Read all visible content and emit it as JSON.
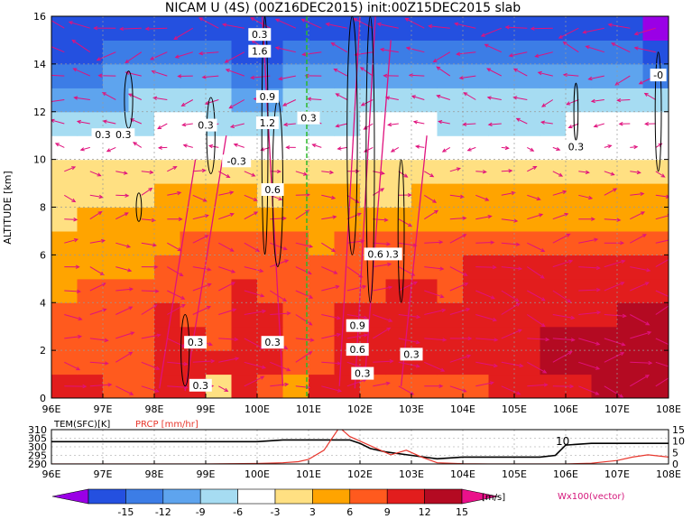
{
  "title": "NICAM U (4S) (00Z16DEC2015) init:00Z15DEC2015 slab",
  "chart_data": [
    {
      "type": "heatmap",
      "title": "NICAM U (4S) (00Z16DEC2015) init:00Z15DEC2015 slab",
      "ylabel": "ALTITUDE [km]",
      "xlim": [
        96,
        108
      ],
      "ylim": [
        0,
        16
      ],
      "x_ticks": [
        "96E",
        "97E",
        "98E",
        "99E",
        "100E",
        "101E",
        "102E",
        "103E",
        "104E",
        "105E",
        "106E",
        "107E",
        "108E"
      ],
      "y_ticks": [
        "0",
        "2",
        "4",
        "6",
        "8",
        "10",
        "12",
        "14",
        "16"
      ],
      "grid": true,
      "contour_labels": [
        "0.3",
        "1.6",
        "0.9",
        "1.2",
        "0.3",
        "0.3",
        "0.3",
        "0.3",
        "-0.3",
        "0.3",
        "0.6",
        "0.3",
        "0.3",
        "0.9",
        "0.6",
        "0.3",
        "0.6",
        "0.3",
        "0.3",
        "0.3",
        "-0"
      ],
      "wind_speed_bands": [
        {
          "z0": 0.0,
          "z1": 1.0,
          "u": [
            14,
            13,
            11,
            10,
            12,
            12,
            3,
            14,
            10,
            6,
            12,
            12,
            9,
            9,
            10,
            9,
            10,
            12,
            12,
            12,
            14,
            15,
            15,
            15
          ]
        },
        {
          "z0": 1.0,
          "z1": 2.0,
          "u": [
            9,
            10,
            11,
            11,
            12,
            13,
            12,
            14,
            14,
            11,
            11,
            12,
            12,
            13,
            14,
            13,
            14,
            14,
            14,
            15,
            16,
            16,
            16,
            16
          ]
        },
        {
          "z0": 2.0,
          "z1": 3.0,
          "u": [
            9,
            10,
            11,
            11,
            12,
            12,
            11,
            14,
            12,
            10,
            11,
            12,
            12,
            13,
            14,
            13,
            14,
            14,
            14,
            15,
            16,
            16,
            16,
            16
          ]
        },
        {
          "z0": 3.0,
          "z1": 4.0,
          "u": [
            10,
            9,
            10,
            10,
            12,
            11,
            10,
            13,
            12,
            11,
            11,
            12,
            12,
            13,
            13,
            12,
            13,
            13,
            13,
            14,
            14,
            14,
            15,
            15
          ]
        },
        {
          "z0": 4.0,
          "z1": 5.0,
          "u": [
            8,
            9,
            9,
            9,
            11,
            11,
            10,
            12,
            11,
            10,
            10,
            11,
            11,
            12,
            12,
            11,
            12,
            12,
            12,
            13,
            13,
            13,
            12,
            12
          ]
        },
        {
          "z0": 5.0,
          "z1": 6.0,
          "u": [
            7,
            8,
            8,
            8,
            10,
            10,
            9,
            11,
            11,
            9,
            9,
            10,
            10,
            10,
            11,
            11,
            12,
            12,
            12,
            12,
            13,
            13,
            12,
            12
          ]
        },
        {
          "z0": 6.0,
          "z1": 7.0,
          "u": [
            6,
            7,
            7,
            7,
            8,
            9,
            9,
            9,
            10,
            9,
            8,
            9,
            9,
            10,
            10,
            10,
            10,
            10,
            11,
            11,
            11,
            11,
            10,
            10
          ]
        },
        {
          "z0": 7.0,
          "z1": 8.0,
          "u": [
            5,
            6,
            6,
            6,
            7,
            8,
            8,
            7,
            8,
            8,
            7,
            7,
            7,
            7,
            8,
            8,
            8,
            8,
            8,
            8,
            8,
            8,
            8,
            8
          ]
        },
        {
          "z0": 8.0,
          "z1": 9.0,
          "u": [
            5,
            5,
            5,
            5,
            6,
            7,
            7,
            6,
            5,
            6,
            6,
            6,
            5,
            5,
            6,
            6,
            6,
            6,
            6,
            6,
            6,
            6,
            6,
            6
          ]
        },
        {
          "z0": 9.0,
          "z1": 10.0,
          "u": [
            4,
            4,
            4,
            4,
            3,
            5,
            5,
            4,
            3,
            4,
            4,
            4,
            4,
            3,
            3,
            3,
            3,
            3,
            3,
            3,
            3,
            3,
            3,
            3
          ]
        },
        {
          "z0": 10.0,
          "z1": 11.0,
          "u": [
            -2,
            -2,
            -2,
            -2,
            -1,
            -2,
            -2,
            -3,
            -2,
            -2,
            -2,
            -2,
            -2,
            -1,
            -1,
            -1,
            -1,
            0,
            0,
            0,
            0,
            0,
            0,
            0
          ]
        },
        {
          "z0": 11.0,
          "z1": 12.0,
          "u": [
            -6,
            -5,
            -5,
            -4,
            -3,
            -3,
            -4,
            -6,
            -5,
            -4,
            -4,
            -4,
            -3,
            -3,
            -3,
            -4,
            -5,
            -5,
            -4,
            -4,
            -3,
            -3,
            -3,
            -3
          ]
        },
        {
          "z0": 12.0,
          "z1": 13.0,
          "u": [
            -8,
            -8,
            -7,
            -6,
            -6,
            -5,
            -6,
            -9,
            -8,
            -6,
            -6,
            -5,
            -5,
            -5,
            -5,
            -6,
            -6,
            -6,
            -6,
            -5,
            -5,
            -5,
            -5,
            -5
          ]
        },
        {
          "z0": 13.0,
          "z1": 14.0,
          "u": [
            -11,
            -10,
            -9,
            -8,
            -8,
            -7,
            -8,
            -11,
            -11,
            -9,
            -8,
            -7,
            -7,
            -7,
            -7,
            -8,
            -8,
            -8,
            -7,
            -7,
            -7,
            -8,
            -9,
            -10
          ]
        },
        {
          "z0": 14.0,
          "z1": 15.0,
          "u": [
            -14,
            -13,
            -12,
            -11,
            -10,
            -10,
            -11,
            -14,
            -14,
            -12,
            -11,
            -10,
            -10,
            -10,
            -10,
            -11,
            -11,
            -10,
            -10,
            -10,
            -10,
            -11,
            -12,
            -13
          ]
        },
        {
          "z0": 15.0,
          "z1": 16.0,
          "u": [
            -15,
            -15,
            -14,
            -13,
            -13,
            -14,
            -14,
            -15,
            -15,
            -14,
            -14,
            -13,
            -13,
            -13,
            -13,
            -13,
            -13,
            -13,
            -13,
            -14,
            -14,
            -14,
            -15,
            -16
          ]
        }
      ],
      "vector_label": "Wx100(vector)"
    },
    {
      "type": "line",
      "xlim": [
        96,
        108
      ],
      "x_ticks": [
        "96E",
        "97E",
        "98E",
        "99E",
        "100E",
        "101E",
        "102E",
        "103E",
        "104E",
        "105E",
        "106E",
        "107E",
        "108E"
      ],
      "left_axis": {
        "label": "TEM(SFC)[K]",
        "ticks": [
          "290",
          "295",
          "300",
          "305",
          "310"
        ],
        "ylim": [
          290,
          310
        ]
      },
      "right_axis": {
        "label": "PRCP [mm/hr]",
        "ticks": [
          "0",
          "5",
          "10",
          "15"
        ],
        "ylim": [
          0,
          15
        ]
      },
      "annotation": "10",
      "series": [
        {
          "name": "TEM(SFC)[K]",
          "color": "#000000",
          "x": [
            96,
            96.5,
            97,
            97.5,
            98,
            98.5,
            99,
            99.5,
            100,
            100.5,
            101,
            101.5,
            101.8,
            102,
            102.2,
            102.5,
            103,
            103.5,
            104,
            104.5,
            105,
            105.5,
            105.8,
            106,
            106.5,
            107,
            107.5,
            108
          ],
          "y": [
            303,
            303,
            303,
            303,
            303,
            303,
            303,
            303,
            303,
            304,
            304,
            304,
            304,
            302,
            299,
            297,
            295,
            293,
            294,
            294,
            294,
            294,
            295,
            301,
            302,
            302,
            302,
            302
          ]
        },
        {
          "name": "PRCP [mm/hr]",
          "color": "#e8372d",
          "x": [
            96,
            97,
            98,
            99,
            100,
            100.5,
            100.8,
            101,
            101.3,
            101.6,
            101.8,
            102,
            102.3,
            102.6,
            102.9,
            103.2,
            103.5,
            104,
            104.5,
            105,
            105.5,
            106,
            106.5,
            107,
            107.3,
            107.6,
            108
          ],
          "y": [
            0,
            0,
            0,
            0,
            0.2,
            0.5,
            1,
            2,
            6,
            16,
            12,
            10,
            7,
            4,
            6,
            3,
            0.5,
            0.1,
            0,
            0,
            0,
            0,
            0.3,
            1.5,
            3,
            4,
            3
          ]
        }
      ]
    }
  ],
  "colorbar": {
    "ticks": [
      "-15",
      "-12",
      "-9",
      "-6",
      "-3",
      "3",
      "6",
      "9",
      "12",
      "15"
    ],
    "unit": "[m/s]",
    "colors": [
      "#9a00e6",
      "#2450e0",
      "#3c7de6",
      "#5ea4ee",
      "#a6dcf2",
      "#ffffff",
      "#ffe082",
      "#ffa400",
      "#ff5a1e",
      "#e21d1d",
      "#b40a22",
      "#ea118a"
    ]
  }
}
